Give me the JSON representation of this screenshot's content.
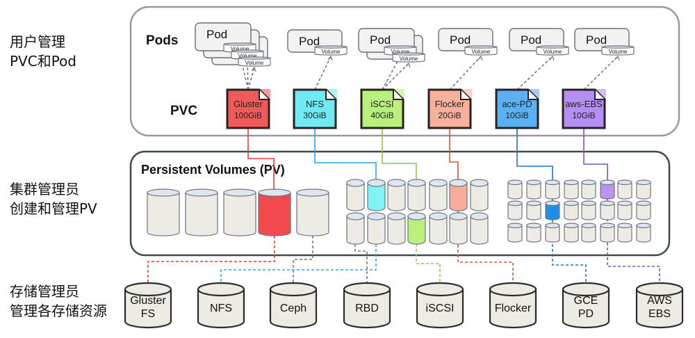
{
  "side_labels": {
    "users": [
      "用户管理",
      "PVC和Pod"
    ],
    "cluster_admin": [
      "集群管理员",
      "创建和管理PV"
    ],
    "storage_admin": [
      "存储管理员",
      "管理各存储资源"
    ]
  },
  "sections": {
    "pods_label": "Pods",
    "pvc_label": "PVC",
    "pv_title": "Persistent Volumes (PV)"
  },
  "pods": [
    {
      "label": "Pod",
      "volumes": [
        "Volume",
        "Volume",
        "Volume"
      ]
    },
    {
      "label": "Pod",
      "volumes": [
        "Volume"
      ]
    },
    {
      "label": "Pod",
      "volumes": [
        "Volume",
        "Volume"
      ]
    },
    {
      "label": "Pod",
      "volumes": [
        "Volume"
      ]
    },
    {
      "label": "Pod",
      "volumes": [
        "Volume"
      ]
    },
    {
      "label": "Pod",
      "volumes": [
        "Volume"
      ]
    }
  ],
  "pvcs": [
    {
      "name": "Gluster",
      "size": "100GiB",
      "color": "#f25a5a"
    },
    {
      "name": "NFS",
      "size": "30GiB",
      "color": "#70eaf2"
    },
    {
      "name": "iSCSI",
      "size": "40GiB",
      "color": "#b9f07c"
    },
    {
      "name": "Flocker",
      "size": "20GiB",
      "color": "#f6b19c"
    },
    {
      "name": "ace-PD",
      "size": "10GiB",
      "color": "#5ab0f2"
    },
    {
      "name": "aws-EBS",
      "size": "10GiB",
      "color": "#b48ef2"
    }
  ],
  "storage": [
    {
      "lines": [
        "Gluster",
        "FS"
      ]
    },
    {
      "lines": [
        "NFS"
      ]
    },
    {
      "lines": [
        "Ceph"
      ]
    },
    {
      "lines": [
        "RBD"
      ]
    },
    {
      "lines": [
        "iSCSI"
      ]
    },
    {
      "lines": [
        "Flocker"
      ]
    },
    {
      "lines": [
        "GCE",
        "PD"
      ]
    },
    {
      "lines": [
        "AWS",
        "EBS"
      ]
    }
  ],
  "colors": {
    "pv_default": "#eeebe4",
    "gray_link": "#777777",
    "red_pv": "#f24a4a",
    "cyan_pv": "#80f3f8",
    "green_pv": "#b9f07c",
    "salmon_pv": "#f6ad9c",
    "blue_pv": "#1e8ee8",
    "purple_pv": "#b995f2"
  }
}
